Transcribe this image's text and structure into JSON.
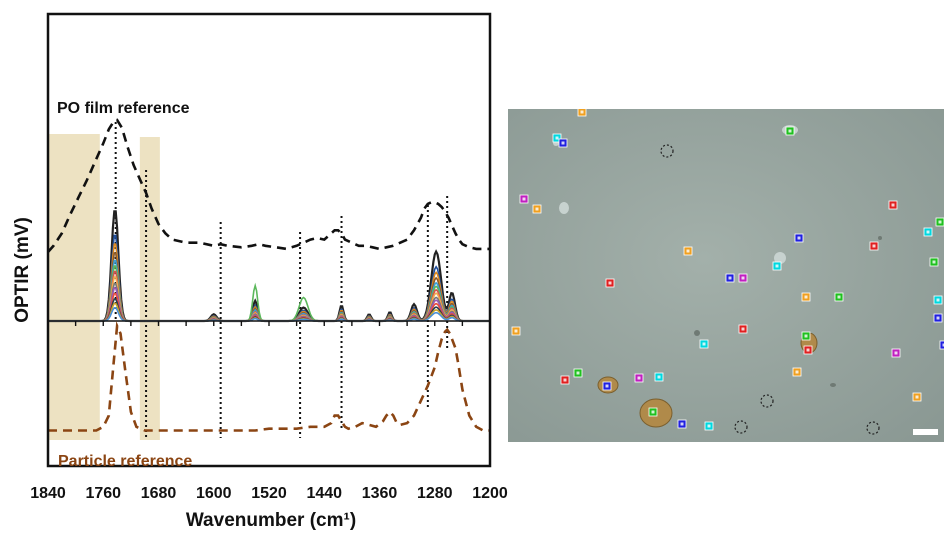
{
  "chart_data": {
    "type": "line",
    "title": "",
    "xlabel": "Wavenumber (cm¹)",
    "ylabel": "OPTIR (mV)",
    "xlim": [
      1840,
      1200
    ],
    "x_reversed": true,
    "xticks": [
      "1840",
      "1760",
      "1680",
      "1600",
      "1520",
      "1440",
      "1360",
      "1280",
      "1200"
    ],
    "shaded_regions": [
      [
        1840,
        1765
      ],
      [
        1707,
        1678
      ]
    ],
    "marker_lines": [
      1742,
      1698,
      1590,
      1475,
      1415,
      1290,
      1262
    ],
    "references": [
      {
        "name": "PO film reference",
        "color": "#111111",
        "x": [
          1840,
          1832,
          1820,
          1808,
          1795,
          1784,
          1772,
          1760,
          1752,
          1745,
          1740,
          1733,
          1725,
          1716,
          1706,
          1698,
          1690,
          1680,
          1670,
          1660,
          1650,
          1640,
          1620,
          1600,
          1590,
          1580,
          1560,
          1545,
          1535,
          1525,
          1510,
          1495,
          1480,
          1470,
          1460,
          1450,
          1440,
          1430,
          1425,
          1420,
          1415,
          1410,
          1400,
          1390,
          1380,
          1370,
          1360,
          1350,
          1340,
          1330,
          1320,
          1310,
          1300,
          1295,
          1290,
          1285,
          1280,
          1275,
          1270,
          1265,
          1260,
          1255,
          1250,
          1245,
          1240,
          1230,
          1220,
          1210,
          1200
        ],
        "y": [
          0.56,
          0.58,
          0.62,
          0.68,
          0.74,
          0.79,
          0.85,
          0.91,
          0.955,
          0.98,
          0.985,
          0.96,
          0.9,
          0.84,
          0.79,
          0.75,
          0.7,
          0.65,
          0.62,
          0.6,
          0.595,
          0.59,
          0.59,
          0.58,
          0.585,
          0.58,
          0.575,
          0.58,
          0.585,
          0.58,
          0.575,
          0.57,
          0.58,
          0.59,
          0.6,
          0.605,
          0.6,
          0.62,
          0.63,
          0.63,
          0.62,
          0.6,
          0.59,
          0.58,
          0.58,
          0.575,
          0.57,
          0.575,
          0.58,
          0.59,
          0.6,
          0.63,
          0.67,
          0.7,
          0.715,
          0.72,
          0.72,
          0.715,
          0.705,
          0.69,
          0.67,
          0.645,
          0.62,
          0.6,
          0.585,
          0.575,
          0.57,
          0.57,
          0.57
        ]
      },
      {
        "name": "Particle reference",
        "color": "#8b4513",
        "x": [
          1840,
          1800,
          1770,
          1760,
          1752,
          1745,
          1740,
          1735,
          1728,
          1720,
          1712,
          1700,
          1680,
          1640,
          1600,
          1560,
          1540,
          1520,
          1500,
          1480,
          1460,
          1440,
          1430,
          1425,
          1420,
          1415,
          1410,
          1405,
          1395,
          1385,
          1375,
          1365,
          1355,
          1350,
          1345,
          1340,
          1335,
          1330,
          1320,
          1310,
          1300,
          1290,
          1280,
          1275,
          1270,
          1265,
          1262,
          1258,
          1254,
          1250,
          1246,
          1240,
          1230,
          1220,
          1210,
          1200
        ],
        "y": [
          0.02,
          0.02,
          0.02,
          0.03,
          0.06,
          0.2,
          0.3,
          0.28,
          0.18,
          0.07,
          0.03,
          0.02,
          0.02,
          0.02,
          0.02,
          0.02,
          0.02,
          0.025,
          0.025,
          0.025,
          0.03,
          0.03,
          0.04,
          0.06,
          0.06,
          0.045,
          0.03,
          0.025,
          0.03,
          0.04,
          0.035,
          0.03,
          0.045,
          0.06,
          0.07,
          0.06,
          0.04,
          0.035,
          0.04,
          0.06,
          0.1,
          0.14,
          0.19,
          0.23,
          0.265,
          0.285,
          0.29,
          0.28,
          0.26,
          0.24,
          0.2,
          0.13,
          0.06,
          0.03,
          0.02,
          0.02
        ]
      }
    ],
    "particle_spectra_note": "",
    "legend": ""
  },
  "labels": {
    "film_ref": "PO film reference",
    "particle_ref": "Particle reference"
  },
  "image_panel": {
    "background": "#8f9e98"
  }
}
